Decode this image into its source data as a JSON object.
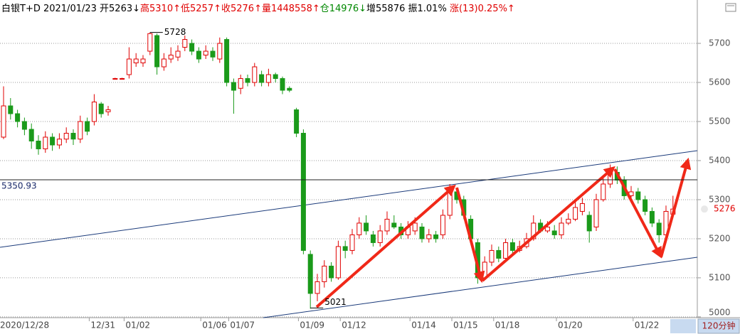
{
  "chart_data": {
    "type": "candlestick",
    "header": [
      {
        "text": "白银T+D 2021/01/23 开5263↓",
        "color": "#000000"
      },
      {
        "text": "高5310↑",
        "color": "#e00000"
      },
      {
        "text": "低5257↑",
        "color": "#e00000"
      },
      {
        "text": "收5276↑",
        "color": "#e00000"
      },
      {
        "text": "量1448558↑",
        "color": "#e00000"
      },
      {
        "text": "仓14976↓",
        "color": "#008800"
      },
      {
        "text": "增55876 振1.01% ",
        "color": "#000000"
      },
      {
        "text": "涨(13)0.25%↑",
        "color": "#e00000"
      }
    ],
    "period": "120分钟",
    "categories": [
      "2020/12/28",
      null,
      null,
      null,
      null,
      null,
      null,
      null,
      null,
      null,
      null,
      null,
      null,
      "12/31",
      null,
      null,
      null,
      null,
      "01/02",
      null,
      null,
      null,
      null,
      null,
      null,
      null,
      null,
      null,
      null,
      "01/06",
      null,
      null,
      null,
      "01/07",
      null,
      null,
      null,
      null,
      null,
      null,
      null,
      null,
      null,
      "01/09",
      null,
      null,
      null,
      null,
      null,
      "01/12",
      null,
      null,
      null,
      null,
      null,
      null,
      null,
      null,
      null,
      "01/14",
      null,
      null,
      null,
      null,
      null,
      "01/15",
      null,
      null,
      null,
      null,
      null,
      "01/18",
      null,
      null,
      null,
      null,
      null,
      null,
      null,
      null,
      "01/20",
      null,
      null,
      null,
      null,
      null,
      null,
      null,
      null,
      null,
      null,
      "01/22",
      null,
      null,
      null,
      null,
      null
    ],
    "open": [
      5460,
      5540,
      5520,
      5500,
      5480,
      5450,
      5430,
      5460,
      5440,
      5455,
      5470,
      5455,
      5500,
      5500,
      5545,
      5525,
      5610,
      5610,
      5620,
      5650,
      5650,
      5680,
      5720,
      5640,
      5660,
      5665,
      5690,
      5700,
      5680,
      5670,
      5680,
      5660,
      5710,
      5600,
      5585,
      5610,
      5600,
      5620,
      5600,
      5620,
      5610,
      5585,
      5530,
      5470,
      5160,
      5060,
      5090,
      5130,
      5100,
      5180,
      5170,
      5210,
      5240,
      5210,
      5190,
      5220,
      5240,
      5230,
      5210,
      5220,
      5230,
      5200,
      5210,
      5210,
      5260,
      5320,
      5300,
      5250,
      5190,
      5100,
      5140,
      5170,
      5150,
      5190,
      5170,
      5180,
      5200,
      5240,
      5220,
      5220,
      5210,
      5240,
      5250,
      5270,
      5260,
      5230,
      5300,
      5340,
      5370,
      5350,
      5310,
      5320,
      5300,
      5270,
      5240,
      5210,
      5263
    ],
    "high": [
      5590,
      5560,
      5530,
      5510,
      5495,
      5465,
      5475,
      5470,
      5470,
      5485,
      5480,
      5515,
      5510,
      5570,
      5550,
      5540,
      5612,
      5612,
      5690,
      5675,
      5670,
      5728,
      5725,
      5675,
      5690,
      5695,
      5720,
      5710,
      5690,
      5695,
      5690,
      5715,
      5715,
      5610,
      5620,
      5620,
      5650,
      5630,
      5635,
      5625,
      5615,
      5590,
      5535,
      5480,
      5170,
      5110,
      5145,
      5140,
      5195,
      5195,
      5225,
      5255,
      5260,
      5220,
      5235,
      5270,
      5260,
      5240,
      5245,
      5255,
      5240,
      5225,
      5220,
      5275,
      5340,
      5330,
      5310,
      5260,
      5200,
      5155,
      5185,
      5180,
      5200,
      5200,
      5195,
      5215,
      5260,
      5250,
      5245,
      5235,
      5255,
      5265,
      5295,
      5305,
      5270,
      5315,
      5355,
      5390,
      5385,
      5360,
      5335,
      5330,
      5310,
      5280,
      5250,
      5285,
      5310
    ],
    "low": [
      5455,
      5505,
      5485,
      5465,
      5430,
      5415,
      5420,
      5425,
      5430,
      5445,
      5440,
      5445,
      5465,
      5490,
      5510,
      5515,
      5608,
      5608,
      5610,
      5640,
      5640,
      5670,
      5620,
      5630,
      5650,
      5655,
      5680,
      5670,
      5650,
      5660,
      5655,
      5650,
      5590,
      5520,
      5570,
      5590,
      5590,
      5590,
      5590,
      5600,
      5570,
      5575,
      5460,
      5160,
      5021,
      5040,
      5075,
      5090,
      5095,
      5150,
      5160,
      5200,
      5210,
      5180,
      5180,
      5210,
      5225,
      5200,
      5200,
      5210,
      5190,
      5190,
      5190,
      5200,
      5250,
      5290,
      5250,
      5190,
      5085,
      5095,
      5130,
      5140,
      5140,
      5160,
      5165,
      5175,
      5195,
      5215,
      5215,
      5200,
      5200,
      5235,
      5245,
      5260,
      5190,
      5220,
      5295,
      5330,
      5340,
      5300,
      5300,
      5290,
      5260,
      5230,
      5190,
      5205,
      5257
    ],
    "close": [
      5540,
      5520,
      5500,
      5480,
      5450,
      5430,
      5460,
      5440,
      5455,
      5470,
      5455,
      5500,
      5475,
      5550,
      5520,
      5530,
      5610,
      5610,
      5660,
      5660,
      5660,
      5725,
      5640,
      5660,
      5670,
      5680,
      5710,
      5680,
      5660,
      5680,
      5665,
      5700,
      5600,
      5580,
      5610,
      5600,
      5640,
      5600,
      5620,
      5610,
      5580,
      5580,
      5470,
      5170,
      5060,
      5090,
      5130,
      5100,
      5180,
      5170,
      5210,
      5240,
      5220,
      5190,
      5220,
      5250,
      5230,
      5210,
      5230,
      5240,
      5200,
      5210,
      5200,
      5260,
      5320,
      5300,
      5260,
      5200,
      5100,
      5140,
      5170,
      5150,
      5190,
      5170,
      5180,
      5200,
      5240,
      5220,
      5230,
      5210,
      5240,
      5250,
      5280,
      5290,
      5220,
      5300,
      5340,
      5380,
      5350,
      5310,
      5320,
      5300,
      5270,
      5240,
      5210,
      5270,
      5276
    ],
    "up_color": "#e00000",
    "down_color": "#1a9a1a",
    "hline": 5350.93,
    "ylim": [
      4998,
      5771
    ],
    "yticks": [
      5000,
      5100,
      5200,
      5300,
      5400,
      5500,
      5600,
      5700
    ],
    "grid": true
  }
}
